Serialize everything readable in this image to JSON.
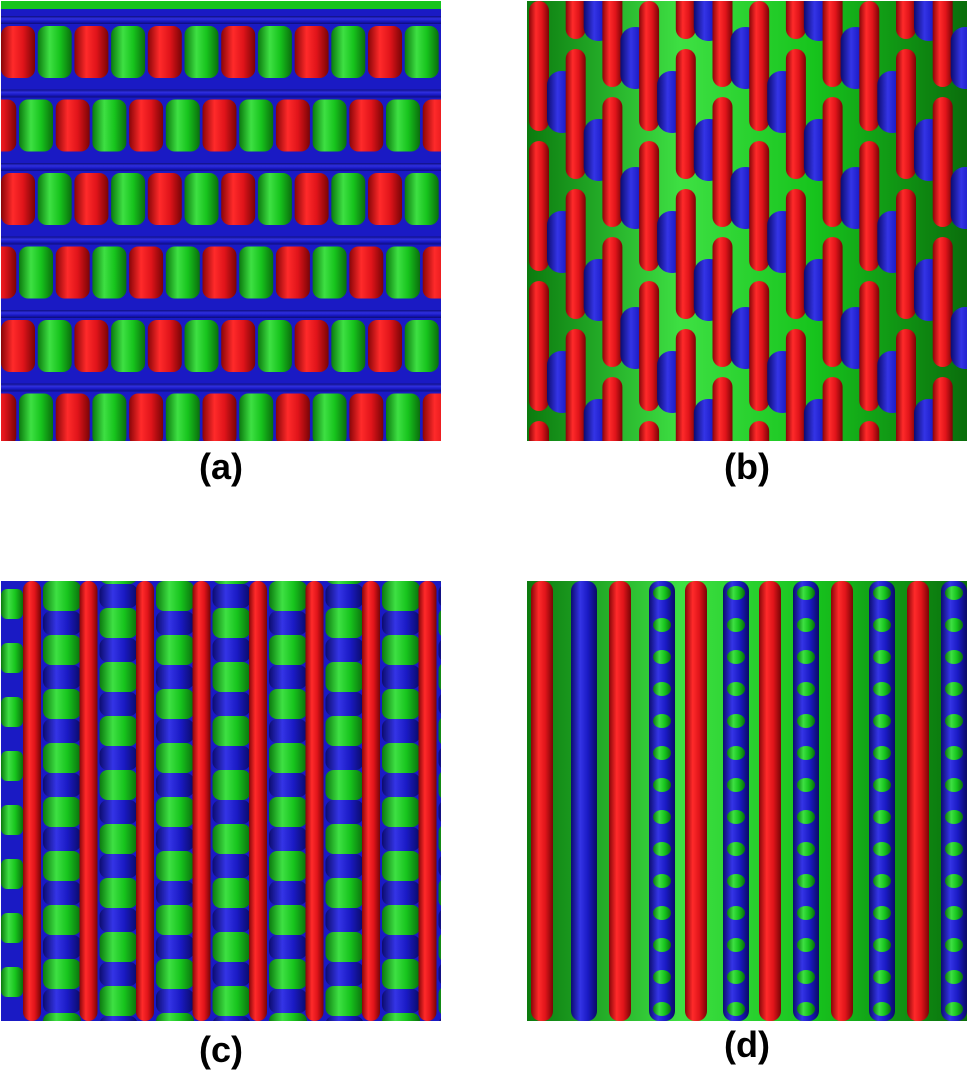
{
  "panels": [
    {
      "id": "a",
      "label": "(a)"
    },
    {
      "id": "b",
      "label": "(b)"
    },
    {
      "id": "c",
      "label": "(c)"
    },
    {
      "id": "d",
      "label": "(d)"
    }
  ],
  "colors": {
    "red": "#e0141a",
    "green": "#17c41d",
    "blue": "#1a1ac4",
    "background": "#ffffff"
  }
}
